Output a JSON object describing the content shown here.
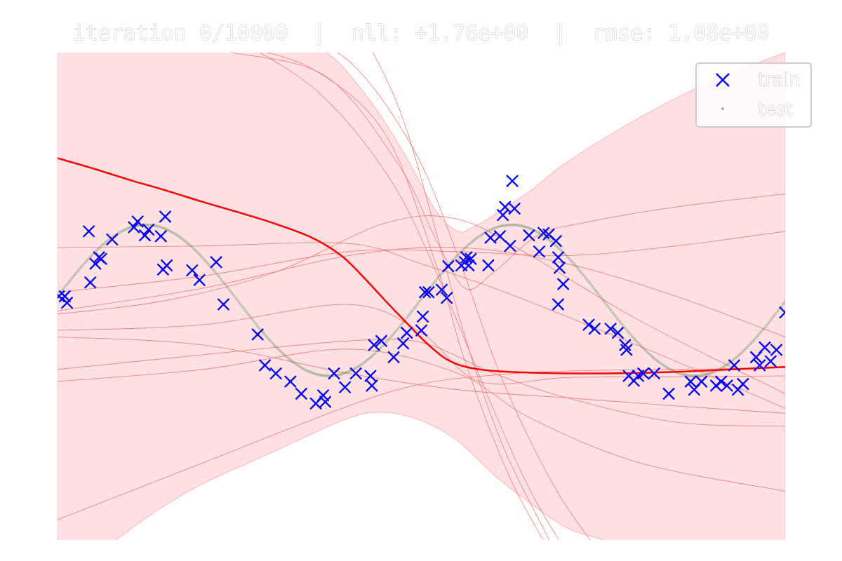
{
  "chart_data": {
    "type": "scatter",
    "title": "iteration 0/10000  |  nll: +1.76e+00  |  rmse: 1.08e+00",
    "xlim": [
      0,
      10
    ],
    "ylim": [
      -3,
      3
    ],
    "grid": false,
    "legend_placement": "top-right",
    "legend": [
      {
        "label": "train",
        "marker": "x",
        "color": "#0000ff"
      },
      {
        "label": "test",
        "marker": "dot",
        "color": "#9ab99a"
      }
    ],
    "colors": {
      "train": "#0000ff",
      "test": "#2e7d32",
      "mean": "#ff0000",
      "band": "#ffe0e3",
      "samples": "#ee6666"
    },
    "train_points": [
      [
        0.02,
        0.0
      ],
      [
        0.1,
        0.0
      ],
      [
        0.13,
        -0.08
      ],
      [
        0.43,
        0.8
      ],
      [
        0.45,
        0.17
      ],
      [
        0.52,
        0.4
      ],
      [
        0.57,
        0.48
      ],
      [
        0.6,
        0.46
      ],
      [
        0.75,
        0.7
      ],
      [
        1.05,
        0.85
      ],
      [
        1.1,
        0.92
      ],
      [
        1.2,
        0.75
      ],
      [
        1.25,
        0.82
      ],
      [
        1.42,
        0.74
      ],
      [
        1.45,
        0.33
      ],
      [
        1.5,
        0.38
      ],
      [
        1.48,
        0.98
      ],
      [
        1.85,
        0.32
      ],
      [
        1.95,
        0.2
      ],
      [
        2.18,
        0.42
      ],
      [
        2.28,
        -0.1
      ],
      [
        2.75,
        -0.47
      ],
      [
        2.85,
        -0.85
      ],
      [
        3.0,
        -0.95
      ],
      [
        3.2,
        -1.05
      ],
      [
        3.35,
        -1.2
      ],
      [
        3.55,
        -1.32
      ],
      [
        3.65,
        -1.22
      ],
      [
        3.68,
        -1.3
      ],
      [
        3.8,
        -0.95
      ],
      [
        3.95,
        -1.12
      ],
      [
        4.1,
        -0.95
      ],
      [
        4.3,
        -0.98
      ],
      [
        4.32,
        -1.1
      ],
      [
        4.35,
        -0.6
      ],
      [
        4.45,
        -0.55
      ],
      [
        4.62,
        -0.75
      ],
      [
        4.75,
        -0.58
      ],
      [
        4.8,
        -0.45
      ],
      [
        5.0,
        -0.42
      ],
      [
        5.02,
        -0.25
      ],
      [
        5.05,
        0.05
      ],
      [
        5.1,
        0.05
      ],
      [
        5.28,
        0.08
      ],
      [
        5.35,
        -0.02
      ],
      [
        5.37,
        0.37
      ],
      [
        5.55,
        0.38
      ],
      [
        5.6,
        0.42
      ],
      [
        5.62,
        0.48
      ],
      [
        5.65,
        0.38
      ],
      [
        5.68,
        0.46
      ],
      [
        5.92,
        0.38
      ],
      [
        5.95,
        0.72
      ],
      [
        6.08,
        0.74
      ],
      [
        6.12,
        1.0
      ],
      [
        6.15,
        1.1
      ],
      [
        6.25,
        1.42
      ],
      [
        6.22,
        0.62
      ],
      [
        6.28,
        1.08
      ],
      [
        6.48,
        0.75
      ],
      [
        6.62,
        0.55
      ],
      [
        6.68,
        0.78
      ],
      [
        6.75,
        0.76
      ],
      [
        6.85,
        0.68
      ],
      [
        6.88,
        0.48
      ],
      [
        6.9,
        0.35
      ],
      [
        6.88,
        -0.1
      ],
      [
        6.95,
        0.15
      ],
      [
        7.3,
        -0.35
      ],
      [
        7.38,
        -0.4
      ],
      [
        7.6,
        -0.4
      ],
      [
        7.7,
        -0.45
      ],
      [
        7.8,
        -0.6
      ],
      [
        7.82,
        -0.66
      ],
      [
        7.85,
        -0.98
      ],
      [
        7.92,
        -1.04
      ],
      [
        7.98,
        -0.98
      ],
      [
        8.05,
        -0.95
      ],
      [
        8.2,
        -0.95
      ],
      [
        8.4,
        -1.2
      ],
      [
        8.7,
        -1.05
      ],
      [
        8.75,
        -1.15
      ],
      [
        8.85,
        -1.05
      ],
      [
        9.05,
        -1.1
      ],
      [
        9.12,
        -1.05
      ],
      [
        9.2,
        -1.1
      ],
      [
        9.3,
        -0.85
      ],
      [
        9.35,
        -1.15
      ],
      [
        9.42,
        -1.08
      ],
      [
        9.6,
        -0.75
      ],
      [
        9.65,
        -0.85
      ],
      [
        9.72,
        -0.63
      ],
      [
        9.8,
        -0.8
      ],
      [
        9.88,
        -0.66
      ],
      [
        10.0,
        -0.2
      ]
    ],
    "mean_line": [
      [
        0.0,
        1.7
      ],
      [
        0.5,
        1.57
      ],
      [
        1.0,
        1.43
      ],
      [
        1.5,
        1.3
      ],
      [
        2.0,
        1.16
      ],
      [
        2.5,
        1.03
      ],
      [
        3.0,
        0.89
      ],
      [
        3.5,
        0.72
      ],
      [
        3.9,
        0.5
      ],
      [
        4.2,
        0.24
      ],
      [
        4.5,
        -0.05
      ],
      [
        4.8,
        -0.33
      ],
      [
        5.1,
        -0.6
      ],
      [
        5.4,
        -0.8
      ],
      [
        5.8,
        -0.9
      ],
      [
        6.5,
        -0.94
      ],
      [
        7.5,
        -0.95
      ],
      [
        8.5,
        -0.93
      ],
      [
        9.5,
        -0.89
      ],
      [
        10.0,
        -0.87
      ]
    ],
    "band_upper": [
      [
        0.0,
        3.6
      ],
      [
        1.0,
        3.5
      ],
      [
        2.0,
        3.35
      ],
      [
        3.0,
        3.2
      ],
      [
        3.7,
        3.0
      ],
      [
        4.3,
        2.4
      ],
      [
        4.8,
        1.7
      ],
      [
        5.2,
        1.05
      ],
      [
        5.5,
        0.8
      ],
      [
        5.7,
        0.85
      ],
      [
        6.0,
        1.0
      ],
      [
        6.5,
        1.3
      ],
      [
        7.0,
        1.65
      ],
      [
        8.0,
        2.2
      ],
      [
        9.0,
        2.65
      ],
      [
        10.0,
        3.0
      ]
    ],
    "band_lower": [
      [
        0.0,
        -3.6
      ],
      [
        0.8,
        -3.0
      ],
      [
        1.8,
        -2.4
      ],
      [
        3.0,
        -1.9
      ],
      [
        4.0,
        -1.5
      ],
      [
        4.5,
        -1.43
      ],
      [
        5.0,
        -1.53
      ],
      [
        5.5,
        -1.78
      ],
      [
        6.0,
        -2.2
      ],
      [
        6.5,
        -2.55
      ],
      [
        7.0,
        -2.85
      ],
      [
        7.5,
        -3.0
      ],
      [
        8.5,
        -3.3
      ],
      [
        10.0,
        -3.6
      ]
    ],
    "posterior_samples": [
      [
        [
          0,
          0.6
        ],
        [
          2,
          0.62
        ],
        [
          4,
          0.65
        ],
        [
          5,
          0.4
        ],
        [
          6,
          0.1
        ],
        [
          7,
          -0.25
        ],
        [
          8.5,
          -0.8
        ],
        [
          10,
          -1.38
        ]
      ],
      [
        [
          0,
          -0.9
        ],
        [
          2,
          -0.72
        ],
        [
          4,
          -0.55
        ],
        [
          5,
          -0.57
        ],
        [
          6,
          -0.95
        ],
        [
          7,
          -1.25
        ],
        [
          8.5,
          -1.55
        ],
        [
          10,
          -1.6
        ]
      ],
      [
        [
          0,
          -2.75
        ],
        [
          2,
          -2.05
        ],
        [
          4,
          -1.35
        ],
        [
          5,
          -1.08
        ],
        [
          6,
          -0.97
        ],
        [
          7,
          -0.92
        ],
        [
          8.5,
          -0.9
        ],
        [
          10,
          -0.88
        ]
      ],
      [
        [
          0,
          -0.22
        ],
        [
          1.5,
          -0.05
        ],
        [
          3,
          0.3
        ],
        [
          4.5,
          0.9
        ],
        [
          5.5,
          0.95
        ],
        [
          6.5,
          0.5
        ],
        [
          8,
          -0.3
        ],
        [
          10,
          -1.2
        ]
      ],
      [
        [
          0,
          -0.42
        ],
        [
          2,
          -0.35
        ],
        [
          4,
          -0.1
        ],
        [
          5,
          -0.45
        ],
        [
          5.8,
          -1.05
        ],
        [
          7,
          -1.0
        ],
        [
          8.5,
          -0.99
        ],
        [
          10,
          -0.98
        ]
      ],
      [
        [
          0,
          -0.18
        ],
        [
          2,
          0.1
        ],
        [
          4,
          0.5
        ],
        [
          5.5,
          0.6
        ],
        [
          7,
          0.4
        ],
        [
          8.5,
          0.0
        ],
        [
          10,
          -0.5
        ]
      ],
      [
        [
          0,
          -1.05
        ],
        [
          2,
          -0.9
        ],
        [
          4,
          -0.65
        ],
        [
          5.5,
          -0.95
        ],
        [
          6.5,
          -1.5
        ],
        [
          8,
          -2.05
        ],
        [
          10,
          -2.4
        ]
      ],
      [
        [
          0,
          0.05
        ],
        [
          2,
          0.25
        ],
        [
          4,
          0.55
        ],
        [
          5.5,
          0.55
        ],
        [
          7,
          0.5
        ],
        [
          8.5,
          0.62
        ],
        [
          10,
          0.8
        ]
      ],
      [
        [
          0,
          -0.5
        ],
        [
          2,
          -0.6
        ],
        [
          4,
          -0.95
        ],
        [
          5.5,
          -1.15
        ],
        [
          7,
          -1.25
        ],
        [
          8.5,
          -1.35
        ],
        [
          10,
          -1.44
        ]
      ],
      [
        [
          2.4,
          3.1
        ],
        [
          3.5,
          2.8
        ],
        [
          4.5,
          2.0
        ],
        [
          5.2,
          0.4
        ],
        [
          5.6,
          -0.8
        ],
        [
          6.2,
          -2.2
        ],
        [
          6.8,
          -3.2
        ]
      ],
      [
        [
          2.4,
          3.2
        ],
        [
          3.6,
          2.5
        ],
        [
          4.6,
          1.4
        ],
        [
          5.3,
          0.1
        ],
        [
          5.9,
          -1.2
        ],
        [
          6.5,
          -2.4
        ],
        [
          7.1,
          -3.3
        ]
      ],
      [
        [
          3.0,
          3.3
        ],
        [
          4.0,
          2.9
        ],
        [
          4.9,
          1.8
        ],
        [
          5.5,
          0.5
        ],
        [
          6.1,
          -1.0
        ],
        [
          6.8,
          -2.3
        ],
        [
          7.4,
          -3.1
        ]
      ],
      [
        [
          2.4,
          3.0
        ],
        [
          3.7,
          2.7
        ],
        [
          4.7,
          1.6
        ],
        [
          5.2,
          0.7
        ],
        [
          5.6,
          0.1
        ],
        [
          6.0,
          0.3
        ],
        [
          6.6,
          0.75
        ],
        [
          7.2,
          0.9
        ],
        [
          8.5,
          1.1
        ],
        [
          10,
          1.26
        ]
      ],
      [
        [
          4.1,
          3.4
        ],
        [
          4.7,
          2.3
        ],
        [
          5.2,
          0.8
        ],
        [
          5.6,
          -0.5
        ],
        [
          6.1,
          -1.8
        ],
        [
          6.7,
          -2.9
        ],
        [
          7.0,
          -3.4
        ]
      ]
    ]
  }
}
